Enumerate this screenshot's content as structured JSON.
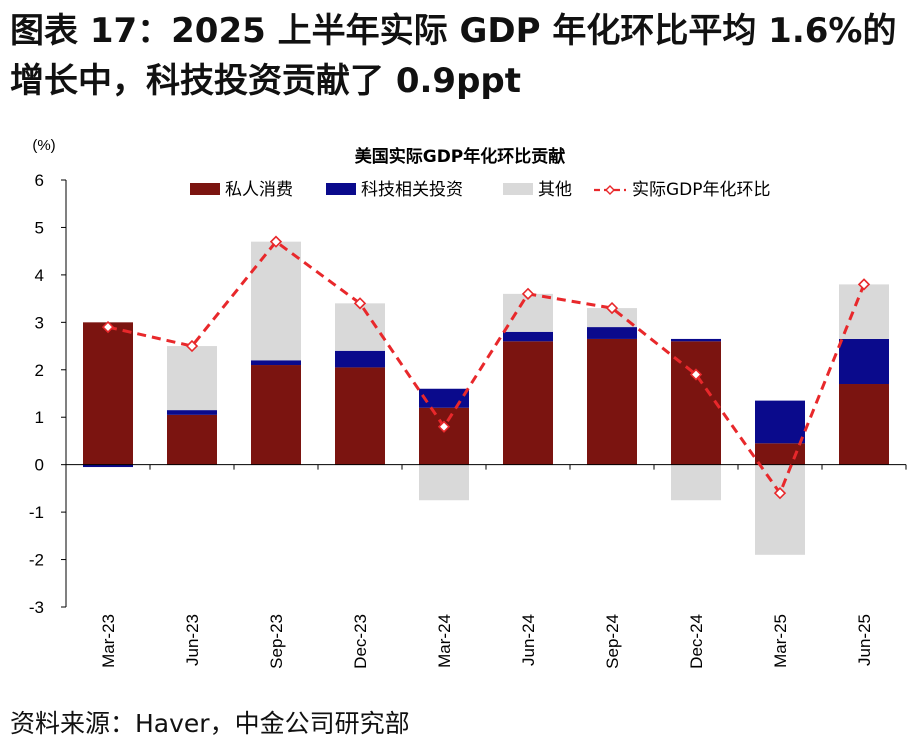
{
  "figure": {
    "title": "图表 17：2025 上半年实际 GDP 年化环比平均 1.6%的增长中，科技投资贡献了 0.9ppt",
    "source": "资料来源：Haver，中金公司研究部"
  },
  "colors": {
    "private_consumption": "#7B1410",
    "tech_investment": "#0A0A8C",
    "other": "#D9D9D9",
    "gdp_line": "#E8282B"
  },
  "chart_data": {
    "type": "bar",
    "stacked": true,
    "title": "美国实际GDP年化环比贡献",
    "ylabel": "(%)",
    "ylim": [
      -3,
      6
    ],
    "yticks": [
      6,
      5,
      4,
      3,
      2,
      1,
      0,
      -1,
      -2,
      -3
    ],
    "grid": false,
    "legend_position": "top",
    "categories": [
      "Mar-23",
      "Jun-23",
      "Sep-23",
      "Dec-23",
      "Mar-24",
      "Jun-24",
      "Sep-24",
      "Dec-24",
      "Mar-25",
      "Jun-25"
    ],
    "series": [
      {
        "name": "私人消费",
        "kind": "bar",
        "color": "#7B1410",
        "values": [
          3.0,
          1.05,
          2.1,
          2.05,
          1.2,
          2.6,
          2.65,
          2.6,
          0.45,
          1.7
        ]
      },
      {
        "name": "科技相关投资",
        "kind": "bar",
        "color": "#0A0A8C",
        "values": [
          -0.05,
          0.1,
          0.1,
          0.35,
          0.4,
          0.2,
          0.25,
          0.05,
          0.9,
          0.95
        ]
      },
      {
        "name": "其他",
        "kind": "bar",
        "color": "#D9D9D9",
        "values": [
          0.0,
          1.35,
          2.5,
          1.0,
          -0.75,
          0.8,
          0.4,
          -0.75,
          -1.9,
          1.15
        ]
      },
      {
        "name": "实际GDP年化环比",
        "kind": "line",
        "color": "#E8282B",
        "values": [
          2.9,
          2.5,
          4.7,
          3.4,
          0.8,
          3.6,
          3.3,
          1.9,
          -0.6,
          3.8
        ]
      }
    ]
  }
}
